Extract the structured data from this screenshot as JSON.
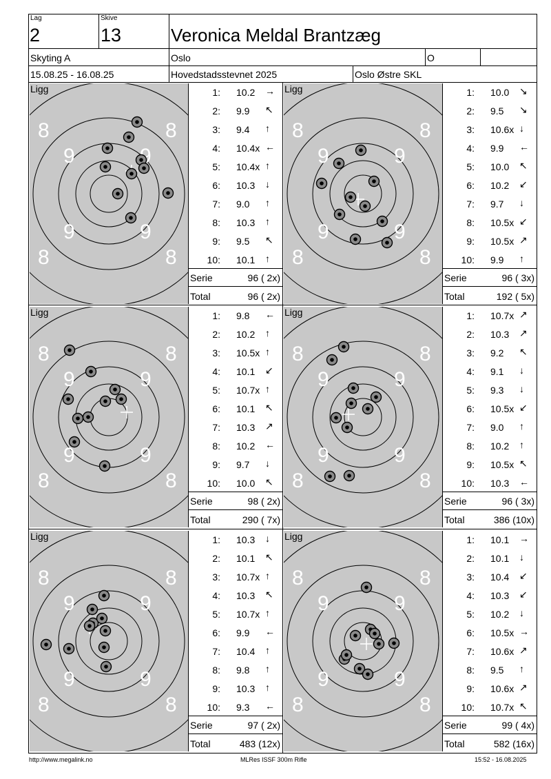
{
  "header": {
    "lag_label": "Lag",
    "lag_value": "2",
    "skive_label": "Skive",
    "skive_value": "13",
    "shooter_name": "Veronica Meldal Brantzæg",
    "program": "Skyting A",
    "location": "Oslo",
    "class": "O",
    "dates": "15.08.25 - 16.08.25",
    "event": "Hovedstadsstevnet 2025",
    "club": "Oslo Østre SKL"
  },
  "labels": {
    "ligg": "Ligg",
    "serie": "Serie",
    "total": "Total"
  },
  "series": [
    {
      "shots": [
        {
          "n": "1:",
          "v": "10.2",
          "d": "→"
        },
        {
          "n": "2:",
          "v": "9.9",
          "d": "↖"
        },
        {
          "n": "3:",
          "v": "9.4",
          "d": "↑"
        },
        {
          "n": "4:",
          "v": "10.4x",
          "d": "←"
        },
        {
          "n": "5:",
          "v": "10.4x",
          "d": "↑"
        },
        {
          "n": "6:",
          "v": "10.3",
          "d": "↓"
        },
        {
          "n": "7:",
          "v": "9.0",
          "d": "↑"
        },
        {
          "n": "8:",
          "v": "10.3",
          "d": "↑"
        },
        {
          "n": "9:",
          "v": "9.5",
          "d": "↖"
        },
        {
          "n": "10:",
          "v": "10.1",
          "d": "↑"
        }
      ],
      "serie": "96 ( 2x)",
      "total": "96 ( 2x)"
    },
    {
      "shots": [
        {
          "n": "1:",
          "v": "10.0",
          "d": "↘"
        },
        {
          "n": "2:",
          "v": "9.5",
          "d": "↘"
        },
        {
          "n": "3:",
          "v": "10.6x",
          "d": "↓"
        },
        {
          "n": "4:",
          "v": "9.9",
          "d": "←"
        },
        {
          "n": "5:",
          "v": "10.0",
          "d": "↖"
        },
        {
          "n": "6:",
          "v": "10.2",
          "d": "↙"
        },
        {
          "n": "7:",
          "v": "9.7",
          "d": "↓"
        },
        {
          "n": "8:",
          "v": "10.5x",
          "d": "↙"
        },
        {
          "n": "9:",
          "v": "10.5x",
          "d": "↗"
        },
        {
          "n": "10:",
          "v": "9.9",
          "d": "↑"
        }
      ],
      "serie": "96 ( 3x)",
      "total": "192 ( 5x)"
    },
    {
      "shots": [
        {
          "n": "1:",
          "v": "9.8",
          "d": "←"
        },
        {
          "n": "2:",
          "v": "10.2",
          "d": "↑"
        },
        {
          "n": "3:",
          "v": "10.5x",
          "d": "↑"
        },
        {
          "n": "4:",
          "v": "10.1",
          "d": "↙"
        },
        {
          "n": "5:",
          "v": "10.7x",
          "d": "↑"
        },
        {
          "n": "6:",
          "v": "10.1",
          "d": "↖"
        },
        {
          "n": "7:",
          "v": "10.3",
          "d": "↗"
        },
        {
          "n": "8:",
          "v": "10.2",
          "d": "←"
        },
        {
          "n": "9:",
          "v": "9.7",
          "d": "↓"
        },
        {
          "n": "10:",
          "v": "10.0",
          "d": "↖"
        }
      ],
      "serie": "98 ( 2x)",
      "total": "290 ( 7x)"
    },
    {
      "shots": [
        {
          "n": "1:",
          "v": "10.7x",
          "d": "↗"
        },
        {
          "n": "2:",
          "v": "10.3",
          "d": "↗"
        },
        {
          "n": "3:",
          "v": "9.2",
          "d": "↖"
        },
        {
          "n": "4:",
          "v": "9.1",
          "d": "↓"
        },
        {
          "n": "5:",
          "v": "9.3",
          "d": "↓"
        },
        {
          "n": "6:",
          "v": "10.5x",
          "d": "↙"
        },
        {
          "n": "7:",
          "v": "9.0",
          "d": "↑"
        },
        {
          "n": "8:",
          "v": "10.2",
          "d": "↑"
        },
        {
          "n": "9:",
          "v": "10.5x",
          "d": "↖"
        },
        {
          "n": "10:",
          "v": "10.3",
          "d": "←"
        }
      ],
      "serie": "96 ( 3x)",
      "total": "386 (10x)"
    },
    {
      "shots": [
        {
          "n": "1:",
          "v": "10.3",
          "d": "↓"
        },
        {
          "n": "2:",
          "v": "10.1",
          "d": "↖"
        },
        {
          "n": "3:",
          "v": "10.7x",
          "d": "↑"
        },
        {
          "n": "4:",
          "v": "10.3",
          "d": "↖"
        },
        {
          "n": "5:",
          "v": "10.7x",
          "d": "↑"
        },
        {
          "n": "6:",
          "v": "9.9",
          "d": "←"
        },
        {
          "n": "7:",
          "v": "10.4",
          "d": "↑"
        },
        {
          "n": "8:",
          "v": "9.8",
          "d": "↑"
        },
        {
          "n": "9:",
          "v": "10.3",
          "d": "↑"
        },
        {
          "n": "10:",
          "v": "9.3",
          "d": "←"
        }
      ],
      "serie": "97 ( 2x)",
      "total": "483 (12x)"
    },
    {
      "shots": [
        {
          "n": "1:",
          "v": "10.1",
          "d": "→"
        },
        {
          "n": "2:",
          "v": "10.1",
          "d": "↓"
        },
        {
          "n": "3:",
          "v": "10.4",
          "d": "↙"
        },
        {
          "n": "4:",
          "v": "10.3",
          "d": "↙"
        },
        {
          "n": "5:",
          "v": "10.2",
          "d": "↓"
        },
        {
          "n": "6:",
          "v": "10.5x",
          "d": "→"
        },
        {
          "n": "7:",
          "v": "10.6x",
          "d": "↗"
        },
        {
          "n": "8:",
          "v": "9.5",
          "d": "↑"
        },
        {
          "n": "9:",
          "v": "10.6x",
          "d": "↗"
        },
        {
          "n": "10:",
          "v": "10.7x",
          "d": "↖"
        }
      ],
      "serie": "99 ( 4x)",
      "total": "582 (16x)"
    }
  ],
  "footer": {
    "left": "http://www.megalink.no",
    "center": "MLRes ISSF 300m Rifle",
    "right": "15:52 - 16.08.2025"
  },
  "ring_label_8": "8",
  "ring_label_9": "9"
}
